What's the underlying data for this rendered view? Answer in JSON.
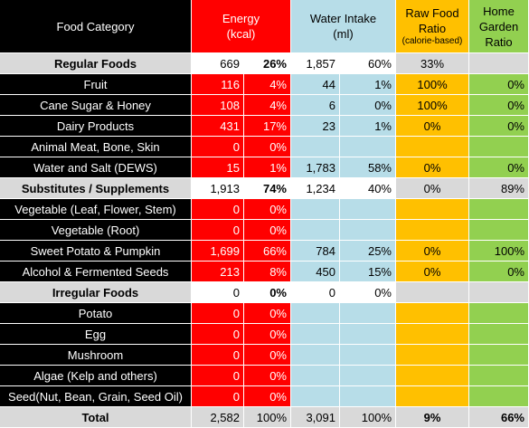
{
  "header": {
    "category": "Food Category",
    "energy_line1": "Energy",
    "energy_line2": "(kcal)",
    "water_line1": "Water Intake",
    "water_line2": "(ml)",
    "raw_line1": "Raw Food",
    "raw_line2": "Ratio",
    "raw_line3": "(calorie-based)",
    "garden_line1": "Home",
    "garden_line2": "Garden",
    "garden_line3": "Ratio"
  },
  "rows": [
    {
      "label": "Regular Foods",
      "energy": "669",
      "energy_pct": "26%",
      "water": "1,857",
      "water_pct": "60%",
      "raw": "33%",
      "garden": ""
    },
    {
      "label": "Fruit",
      "energy": "116",
      "energy_pct": "4%",
      "water": "44",
      "water_pct": "1%",
      "raw": "100%",
      "garden": "0%"
    },
    {
      "label": "Cane Sugar & Honey",
      "energy": "108",
      "energy_pct": "4%",
      "water": "6",
      "water_pct": "0%",
      "raw": "100%",
      "garden": "0%"
    },
    {
      "label": "Dairy Products",
      "energy": "431",
      "energy_pct": "17%",
      "water": "23",
      "water_pct": "1%",
      "raw": "0%",
      "garden": "0%"
    },
    {
      "label": "Animal Meat, Bone, Skin",
      "energy": "0",
      "energy_pct": "0%",
      "water": "",
      "water_pct": "",
      "raw": "",
      "garden": ""
    },
    {
      "label": "Water and Salt (DEWS)",
      "energy": "15",
      "energy_pct": "1%",
      "water": "1,783",
      "water_pct": "58%",
      "raw": "0%",
      "garden": "0%"
    },
    {
      "label": "Substitutes / Supplements",
      "energy": "1,913",
      "energy_pct": "74%",
      "water": "1,234",
      "water_pct": "40%",
      "raw": "0%",
      "garden": "89%"
    },
    {
      "label": "Vegetable (Leaf, Flower, Stem)",
      "energy": "0",
      "energy_pct": "0%",
      "water": "",
      "water_pct": "",
      "raw": "",
      "garden": ""
    },
    {
      "label": "Vegetable (Root)",
      "energy": "0",
      "energy_pct": "0%",
      "water": "",
      "water_pct": "",
      "raw": "",
      "garden": ""
    },
    {
      "label": "Sweet Potato & Pumpkin",
      "energy": "1,699",
      "energy_pct": "66%",
      "water": "784",
      "water_pct": "25%",
      "raw": "0%",
      "garden": "100%"
    },
    {
      "label": "Alcohol & Fermented Seeds",
      "energy": "213",
      "energy_pct": "8%",
      "water": "450",
      "water_pct": "15%",
      "raw": "0%",
      "garden": "0%"
    },
    {
      "label": "Irregular Foods",
      "energy": "0",
      "energy_pct": "0%",
      "water": "0",
      "water_pct": "0%",
      "raw": "",
      "garden": ""
    },
    {
      "label": "Potato",
      "energy": "0",
      "energy_pct": "0%",
      "water": "",
      "water_pct": "",
      "raw": "",
      "garden": ""
    },
    {
      "label": "Egg",
      "energy": "0",
      "energy_pct": "0%",
      "water": "",
      "water_pct": "",
      "raw": "",
      "garden": ""
    },
    {
      "label": "Mushroom",
      "energy": "0",
      "energy_pct": "0%",
      "water": "",
      "water_pct": "",
      "raw": "",
      "garden": ""
    },
    {
      "label": "Algae (Kelp and others)",
      "energy": "0",
      "energy_pct": "0%",
      "water": "",
      "water_pct": "",
      "raw": "",
      "garden": ""
    },
    {
      "label": "Seed(Nut, Bean, Grain, Seed Oil)",
      "energy": "0",
      "energy_pct": "0%",
      "water": "",
      "water_pct": "",
      "raw": "",
      "garden": ""
    },
    {
      "label": "Total",
      "energy": "2,582",
      "energy_pct": "100%",
      "water": "3,091",
      "water_pct": "100%",
      "raw": "9%",
      "garden": "66%"
    }
  ],
  "colors": {
    "black": "#000000",
    "red": "#ff0000",
    "blue": "#b7dde8",
    "orange": "#ffc000",
    "green": "#92d050",
    "gray": "#d9d9d9"
  }
}
